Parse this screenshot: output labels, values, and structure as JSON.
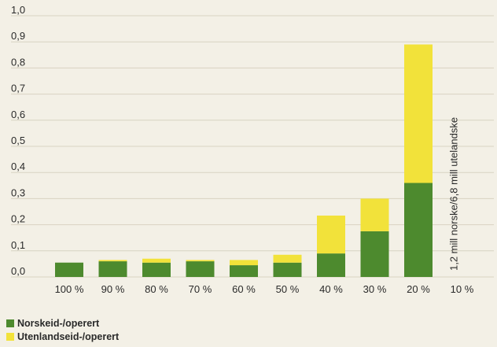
{
  "chart_data": {
    "type": "bar",
    "stacked": true,
    "categories": [
      "100 %",
      "90 %",
      "80 %",
      "70 %",
      "60 %",
      "50 %",
      "40 %",
      "30 %",
      "20 %",
      "10 %"
    ],
    "series": [
      {
        "name": "Norskeid-/operert",
        "values": [
          0.055,
          0.06,
          0.055,
          0.06,
          0.045,
          0.055,
          0.09,
          0.175,
          0.36,
          0
        ],
        "color": "#4d8a2e"
      },
      {
        "name": "Utenlandseid-/operert",
        "values": [
          0.0,
          0.005,
          0.015,
          0.005,
          0.02,
          0.03,
          0.145,
          0.125,
          0.53,
          0
        ],
        "color": "#f2e23a"
      }
    ],
    "yticks": [
      "0,0",
      "0,1",
      "0,2",
      "0,3",
      "0,4",
      "0,5",
      "0,6",
      "0,7",
      "0,8",
      "0,9",
      "1,0"
    ],
    "ylim": [
      0,
      1.0
    ],
    "grid": true,
    "legend_position": "bottom-left",
    "annotation": {
      "text": "1,2 mill norske/6,8 mill utelandske",
      "category": "10 %"
    }
  }
}
